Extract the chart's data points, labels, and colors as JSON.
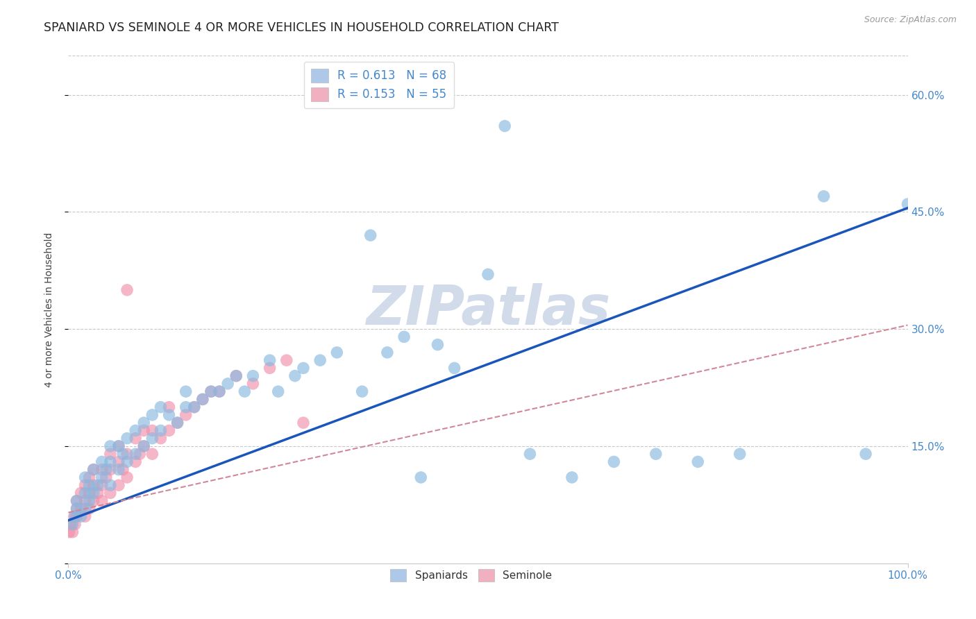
{
  "title": "SPANIARD VS SEMINOLE 4 OR MORE VEHICLES IN HOUSEHOLD CORRELATION CHART",
  "source_text": "Source: ZipAtlas.com",
  "ylabel": "4 or more Vehicles in Household",
  "xlim": [
    0.0,
    1.0
  ],
  "ylim": [
    0.0,
    0.65
  ],
  "ytick_positions": [
    0.0,
    0.15,
    0.3,
    0.45,
    0.6
  ],
  "ytick_labels": [
    "",
    "15.0%",
    "30.0%",
    "45.0%",
    "60.0%"
  ],
  "spaniard_R": 0.613,
  "spaniard_N": 68,
  "seminole_R": 0.153,
  "seminole_N": 55,
  "watermark": "ZIPatlas",
  "legend_color_spaniard": "#adc8e8",
  "legend_color_seminole": "#f0b0c0",
  "dot_color_spaniard": "#88b8e0",
  "dot_color_seminole": "#f090aa",
  "line_color_spaniard": "#1a55bb",
  "line_color_seminole": "#d08898",
  "text_color": "#4488cc",
  "background_color": "#ffffff",
  "grid_color": "#c8c8c8",
  "title_color": "#222222",
  "source_color": "#999999",
  "ylabel_color": "#444444",
  "title_fontsize": 12.5,
  "axis_label_fontsize": 10,
  "tick_fontsize": 11,
  "legend_fontsize": 12,
  "watermark_color": "#ccd8e8",
  "spaniard_x": [
    0.005,
    0.008,
    0.01,
    0.01,
    0.015,
    0.02,
    0.02,
    0.02,
    0.025,
    0.025,
    0.03,
    0.03,
    0.035,
    0.04,
    0.04,
    0.045,
    0.05,
    0.05,
    0.05,
    0.06,
    0.06,
    0.065,
    0.07,
    0.07,
    0.08,
    0.08,
    0.09,
    0.09,
    0.1,
    0.1,
    0.11,
    0.11,
    0.12,
    0.13,
    0.14,
    0.14,
    0.15,
    0.16,
    0.17,
    0.18,
    0.19,
    0.2,
    0.21,
    0.22,
    0.24,
    0.25,
    0.27,
    0.28,
    0.3,
    0.32,
    0.35,
    0.36,
    0.38,
    0.4,
    0.42,
    0.44,
    0.46,
    0.5,
    0.52,
    0.55,
    0.6,
    0.65,
    0.7,
    0.75,
    0.8,
    0.9,
    0.95,
    1.0
  ],
  "spaniard_y": [
    0.05,
    0.06,
    0.07,
    0.08,
    0.06,
    0.07,
    0.09,
    0.11,
    0.08,
    0.1,
    0.09,
    0.12,
    0.1,
    0.11,
    0.13,
    0.12,
    0.1,
    0.13,
    0.15,
    0.12,
    0.15,
    0.14,
    0.13,
    0.16,
    0.14,
    0.17,
    0.15,
    0.18,
    0.16,
    0.19,
    0.17,
    0.2,
    0.19,
    0.18,
    0.2,
    0.22,
    0.2,
    0.21,
    0.22,
    0.22,
    0.23,
    0.24,
    0.22,
    0.24,
    0.26,
    0.22,
    0.24,
    0.25,
    0.26,
    0.27,
    0.22,
    0.42,
    0.27,
    0.29,
    0.11,
    0.28,
    0.25,
    0.37,
    0.56,
    0.14,
    0.11,
    0.13,
    0.14,
    0.13,
    0.14,
    0.47,
    0.14,
    0.46
  ],
  "seminole_x": [
    0.001,
    0.003,
    0.005,
    0.007,
    0.008,
    0.01,
    0.01,
    0.01,
    0.015,
    0.015,
    0.02,
    0.02,
    0.02,
    0.025,
    0.025,
    0.025,
    0.03,
    0.03,
    0.03,
    0.035,
    0.04,
    0.04,
    0.04,
    0.045,
    0.05,
    0.05,
    0.05,
    0.06,
    0.06,
    0.06,
    0.065,
    0.07,
    0.07,
    0.07,
    0.08,
    0.08,
    0.085,
    0.09,
    0.09,
    0.1,
    0.1,
    0.11,
    0.12,
    0.12,
    0.13,
    0.14,
    0.15,
    0.16,
    0.17,
    0.18,
    0.2,
    0.22,
    0.24,
    0.26,
    0.28
  ],
  "seminole_y": [
    0.04,
    0.05,
    0.04,
    0.06,
    0.05,
    0.06,
    0.07,
    0.08,
    0.07,
    0.09,
    0.06,
    0.08,
    0.1,
    0.07,
    0.09,
    0.11,
    0.08,
    0.1,
    0.12,
    0.09,
    0.08,
    0.1,
    0.12,
    0.11,
    0.09,
    0.12,
    0.14,
    0.1,
    0.13,
    0.15,
    0.12,
    0.11,
    0.14,
    0.35,
    0.13,
    0.16,
    0.14,
    0.15,
    0.17,
    0.14,
    0.17,
    0.16,
    0.17,
    0.2,
    0.18,
    0.19,
    0.2,
    0.21,
    0.22,
    0.22,
    0.24,
    0.23,
    0.25,
    0.26,
    0.18
  ],
  "line_sp_x0": 0.0,
  "line_sp_y0": 0.055,
  "line_sp_x1": 1.0,
  "line_sp_y1": 0.455,
  "line_se_x0": 0.0,
  "line_se_y0": 0.065,
  "line_se_x1": 1.0,
  "line_se_y1": 0.305
}
